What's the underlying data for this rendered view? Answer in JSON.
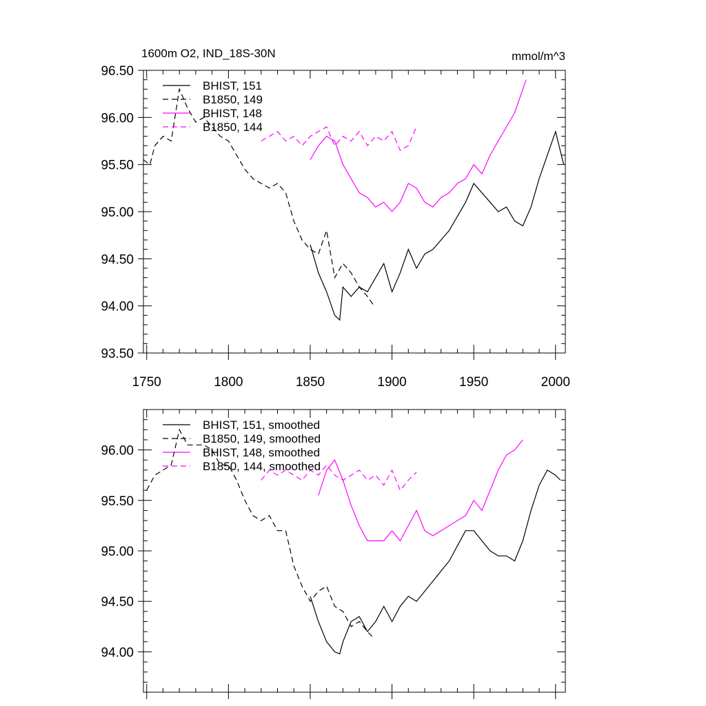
{
  "chart_data": [
    {
      "type": "line",
      "title": "1600m O2, IND_18S-30N",
      "units": "mmol/m^3",
      "xlim": [
        1748,
        2006
      ],
      "ylim": [
        93.5,
        96.5
      ],
      "x_ticks": [
        "1750",
        "1800",
        "1850",
        "1900",
        "1950",
        "2000"
      ],
      "y_ticks": [
        "93.50",
        "94.00",
        "94.50",
        "95.00",
        "95.50",
        "96.00",
        "96.50"
      ],
      "legend_position": "top-left",
      "series": [
        {
          "name": "BHIST, 151",
          "color": "#000000",
          "dash": "solid",
          "x": [
            1850,
            1855,
            1860,
            1865,
            1868,
            1870,
            1875,
            1880,
            1885,
            1890,
            1895,
            1900,
            1905,
            1910,
            1915,
            1920,
            1925,
            1930,
            1935,
            1940,
            1945,
            1950,
            1955,
            1960,
            1965,
            1970,
            1975,
            1980,
            1985,
            1990,
            1995,
            2000,
            2005
          ],
          "y": [
            94.65,
            94.35,
            94.15,
            93.9,
            93.85,
            94.2,
            94.1,
            94.2,
            94.15,
            94.3,
            94.45,
            94.15,
            94.35,
            94.6,
            94.4,
            94.55,
            94.6,
            94.7,
            94.8,
            94.95,
            95.1,
            95.3,
            95.2,
            95.1,
            95.0,
            95.05,
            94.9,
            94.85,
            95.05,
            95.35,
            95.6,
            95.85,
            95.5
          ]
        },
        {
          "name": "B1850, 149",
          "color": "#000000",
          "dash": "dashed",
          "x": [
            1748,
            1752,
            1755,
            1760,
            1765,
            1770,
            1775,
            1780,
            1785,
            1790,
            1795,
            1800,
            1805,
            1810,
            1815,
            1820,
            1825,
            1830,
            1835,
            1840,
            1845,
            1850,
            1855,
            1860,
            1865,
            1870,
            1875,
            1880,
            1885,
            1889
          ],
          "y": [
            95.55,
            95.5,
            95.7,
            95.8,
            95.75,
            96.3,
            96.1,
            95.95,
            96.0,
            95.9,
            95.8,
            95.75,
            95.6,
            95.45,
            95.35,
            95.3,
            95.25,
            95.3,
            95.2,
            94.9,
            94.7,
            94.6,
            94.55,
            94.8,
            94.3,
            94.45,
            94.35,
            94.2,
            94.1,
            94.0
          ]
        },
        {
          "name": "BHIST, 148",
          "color": "#ff00ff",
          "dash": "solid",
          "x": [
            1850,
            1855,
            1860,
            1865,
            1870,
            1875,
            1880,
            1885,
            1890,
            1895,
            1900,
            1905,
            1910,
            1915,
            1920,
            1925,
            1930,
            1935,
            1940,
            1945,
            1950,
            1955,
            1960,
            1965,
            1970,
            1975,
            1980,
            1982
          ],
          "y": [
            95.55,
            95.7,
            95.8,
            95.75,
            95.5,
            95.35,
            95.2,
            95.15,
            95.05,
            95.1,
            95.0,
            95.1,
            95.3,
            95.25,
            95.1,
            95.05,
            95.15,
            95.2,
            95.3,
            95.35,
            95.5,
            95.4,
            95.6,
            95.75,
            95.9,
            96.05,
            96.3,
            96.4
          ]
        },
        {
          "name": "B1850, 144",
          "color": "#ff00ff",
          "dash": "dashed",
          "x": [
            1820,
            1825,
            1830,
            1835,
            1840,
            1845,
            1850,
            1855,
            1860,
            1865,
            1870,
            1875,
            1880,
            1885,
            1890,
            1895,
            1900,
            1905,
            1910,
            1915
          ],
          "y": [
            95.75,
            95.8,
            95.85,
            95.75,
            95.8,
            95.7,
            95.8,
            95.85,
            95.9,
            95.7,
            95.8,
            95.75,
            95.85,
            95.7,
            95.8,
            95.75,
            95.85,
            95.65,
            95.7,
            95.9
          ]
        }
      ]
    },
    {
      "type": "line",
      "xlim": [
        1748,
        2006
      ],
      "ylim": [
        93.6,
        96.4
      ],
      "y_ticks": [
        "94.00",
        "94.50",
        "95.00",
        "95.50",
        "96.00"
      ],
      "legend_position": "top-left",
      "series": [
        {
          "name": "BHIST, 151, smoothed",
          "color": "#000000",
          "dash": "solid",
          "x": [
            1850,
            1855,
            1860,
            1865,
            1868,
            1870,
            1875,
            1880,
            1885,
            1890,
            1895,
            1900,
            1905,
            1910,
            1915,
            1920,
            1925,
            1930,
            1935,
            1940,
            1945,
            1950,
            1955,
            1960,
            1965,
            1970,
            1975,
            1980,
            1985,
            1990,
            1995,
            2000,
            2003
          ],
          "y": [
            94.55,
            94.3,
            94.1,
            94.0,
            93.98,
            94.1,
            94.3,
            94.35,
            94.2,
            94.3,
            94.45,
            94.3,
            94.45,
            94.55,
            94.5,
            94.6,
            94.7,
            94.8,
            94.9,
            95.05,
            95.2,
            95.2,
            95.1,
            95.0,
            94.95,
            94.95,
            94.9,
            95.1,
            95.4,
            95.65,
            95.8,
            95.75,
            95.7
          ]
        },
        {
          "name": "B1850, 149, smoothed",
          "color": "#000000",
          "dash": "dashed",
          "x": [
            1750,
            1755,
            1760,
            1765,
            1770,
            1775,
            1780,
            1785,
            1790,
            1795,
            1800,
            1805,
            1810,
            1815,
            1820,
            1825,
            1830,
            1835,
            1840,
            1845,
            1850,
            1855,
            1860,
            1865,
            1870,
            1875,
            1880,
            1885,
            1888
          ],
          "y": [
            95.6,
            95.75,
            95.8,
            95.85,
            96.2,
            96.05,
            96.05,
            96.05,
            96.0,
            95.85,
            95.85,
            95.7,
            95.5,
            95.35,
            95.3,
            95.35,
            95.2,
            95.2,
            94.85,
            94.65,
            94.5,
            94.6,
            94.65,
            94.45,
            94.4,
            94.25,
            94.3,
            94.2,
            94.15
          ]
        },
        {
          "name": "BHIST, 148, smoothed",
          "color": "#ff00ff",
          "dash": "solid",
          "x": [
            1855,
            1860,
            1865,
            1870,
            1875,
            1880,
            1885,
            1890,
            1895,
            1900,
            1905,
            1910,
            1915,
            1920,
            1925,
            1930,
            1935,
            1940,
            1945,
            1950,
            1955,
            1960,
            1965,
            1970,
            1975,
            1980
          ],
          "y": [
            95.55,
            95.8,
            95.9,
            95.7,
            95.45,
            95.25,
            95.1,
            95.1,
            95.1,
            95.2,
            95.1,
            95.25,
            95.4,
            95.2,
            95.15,
            95.2,
            95.25,
            95.3,
            95.35,
            95.5,
            95.4,
            95.6,
            95.8,
            95.95,
            96.0,
            96.1
          ]
        },
        {
          "name": "B1850, 144, smoothed",
          "color": "#ff00ff",
          "dash": "dashed",
          "x": [
            1820,
            1825,
            1830,
            1835,
            1840,
            1845,
            1850,
            1855,
            1860,
            1865,
            1870,
            1875,
            1880,
            1885,
            1890,
            1895,
            1900,
            1905,
            1910,
            1915
          ],
          "y": [
            95.7,
            95.8,
            95.75,
            95.8,
            95.75,
            95.7,
            95.8,
            95.75,
            95.85,
            95.75,
            95.7,
            95.75,
            95.8,
            95.7,
            95.75,
            95.65,
            95.8,
            95.6,
            95.7,
            95.78
          ]
        }
      ]
    }
  ]
}
